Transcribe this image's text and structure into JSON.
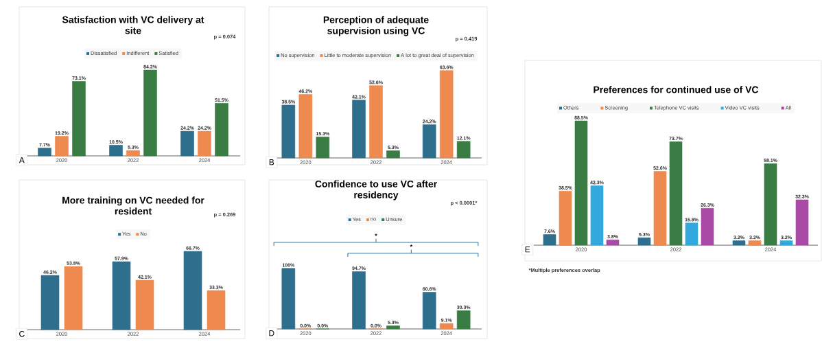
{
  "chart_data": [
    {
      "type": "bar",
      "title": "Satisfaction with VC delivery at site",
      "categories": [
        "2020",
        "2022",
        "2024"
      ],
      "legend": "top",
      "series": [
        {
          "name": "Dissatisfied",
          "color": "#2e6f8e",
          "values": [
            7.7,
            10.5,
            24.2
          ],
          "value_labels": [
            "7.7%",
            "10.5%",
            "24.2%"
          ]
        },
        {
          "name": "Indifferent",
          "color": "#ee8a4f",
          "values": [
            19.2,
            5.3,
            24.2
          ],
          "value_labels": [
            "19.2%",
            "5.3%",
            "24.2%"
          ]
        },
        {
          "name": "Satisfied",
          "color": "#3a7d44",
          "values": [
            73.1,
            84.2,
            51.5
          ],
          "value_labels": [
            "73.1%",
            "84.2%",
            "51.5%"
          ]
        }
      ],
      "annotations": [
        "A",
        "p = 0.074"
      ]
    },
    {
      "type": "bar",
      "title": "Perception of adequate supervision using VC",
      "categories": [
        "2020",
        "2022",
        "2024"
      ],
      "legend": "top",
      "series": [
        {
          "name": "No supervision",
          "color": "#2e6f8e",
          "values": [
            38.5,
            42.1,
            24.2
          ],
          "value_labels": [
            "38.5%",
            "42.1%",
            "24.2%"
          ]
        },
        {
          "name": "Little to moderate supervision",
          "color": "#ee8a4f",
          "values": [
            46.2,
            52.6,
            63.6
          ],
          "value_labels": [
            "46.2%",
            "52.6%",
            "63.6%"
          ]
        },
        {
          "name": "A lot to great deal of supervision",
          "color": "#3a7d44",
          "values": [
            15.3,
            5.3,
            12.1
          ],
          "value_labels": [
            "15.3%",
            "5.3%",
            "12.1%"
          ]
        }
      ],
      "annotations": [
        "B",
        "p = 0.419"
      ]
    },
    {
      "type": "bar",
      "title": "More training on VC needed for resident",
      "categories": [
        "2020",
        "2022",
        "2024"
      ],
      "legend": "top",
      "series": [
        {
          "name": "Yes",
          "color": "#2e6f8e",
          "values": [
            46.2,
            57.9,
            66.7
          ],
          "value_labels": [
            "46.2%",
            "57.9%",
            "66.7%"
          ]
        },
        {
          "name": "No",
          "color": "#ee8a4f",
          "values": [
            53.8,
            42.1,
            33.3
          ],
          "value_labels": [
            "53.8%",
            "42.1%",
            "33.3%"
          ]
        }
      ],
      "annotations": [
        "C",
        "p = 0.269"
      ]
    },
    {
      "type": "bar",
      "title": "Confidence to use VC after residency",
      "categories": [
        "2020",
        "2022",
        "2024"
      ],
      "legend": "top",
      "series": [
        {
          "name": "Yes",
          "color": "#2e6f8e",
          "values": [
            100,
            94.7,
            60.6
          ],
          "value_labels": [
            "100%",
            "94.7%",
            "60.6%"
          ]
        },
        {
          "name": "no",
          "color": "#ee8a4f",
          "values": [
            0.0,
            0.0,
            9.1
          ],
          "value_labels": [
            "0.0%",
            "0.0%",
            "9.1%"
          ]
        },
        {
          "name": "Unsure",
          "color": "#3a7d44",
          "values": [
            0.0,
            5.3,
            30.3
          ],
          "value_labels": [
            "0.0%",
            "5.3%",
            "30.3%"
          ]
        }
      ],
      "annotations": [
        "D",
        "p < 0.0001*",
        "*",
        "*"
      ]
    },
    {
      "type": "bar",
      "title": "Preferences for continued use of VC",
      "categories": [
        "2020",
        "2022",
        "2024"
      ],
      "legend": "top",
      "series": [
        {
          "name": "Others",
          "color": "#2e6f8e",
          "values": [
            7.6,
            5.3,
            3.2
          ],
          "value_labels": [
            "7.6%",
            "5.3%",
            "3.2%"
          ]
        },
        {
          "name": "Screening",
          "color": "#ee8a4f",
          "values": [
            38.5,
            52.6,
            3.2
          ],
          "value_labels": [
            "38.5%",
            "52.6%",
            "3.2%"
          ]
        },
        {
          "name": "Telephone VC visits",
          "color": "#3a7d44",
          "values": [
            88.5,
            73.7,
            58.1
          ],
          "value_labels": [
            "88.5%",
            "73.7%",
            "58.1%"
          ]
        },
        {
          "name": "Video VC visits",
          "color": "#33a8dc",
          "values": [
            42.3,
            15.8,
            3.2
          ],
          "value_labels": [
            "42.3%",
            "15.8%",
            "3.2%"
          ]
        },
        {
          "name": "All",
          "color": "#a84aa6",
          "values": [
            3.8,
            26.3,
            32.3
          ],
          "value_labels": [
            "3.8%",
            "26.3%",
            "32.3%"
          ]
        }
      ],
      "annotations": [
        "E",
        "*Multiple preferences overlap"
      ]
    }
  ]
}
